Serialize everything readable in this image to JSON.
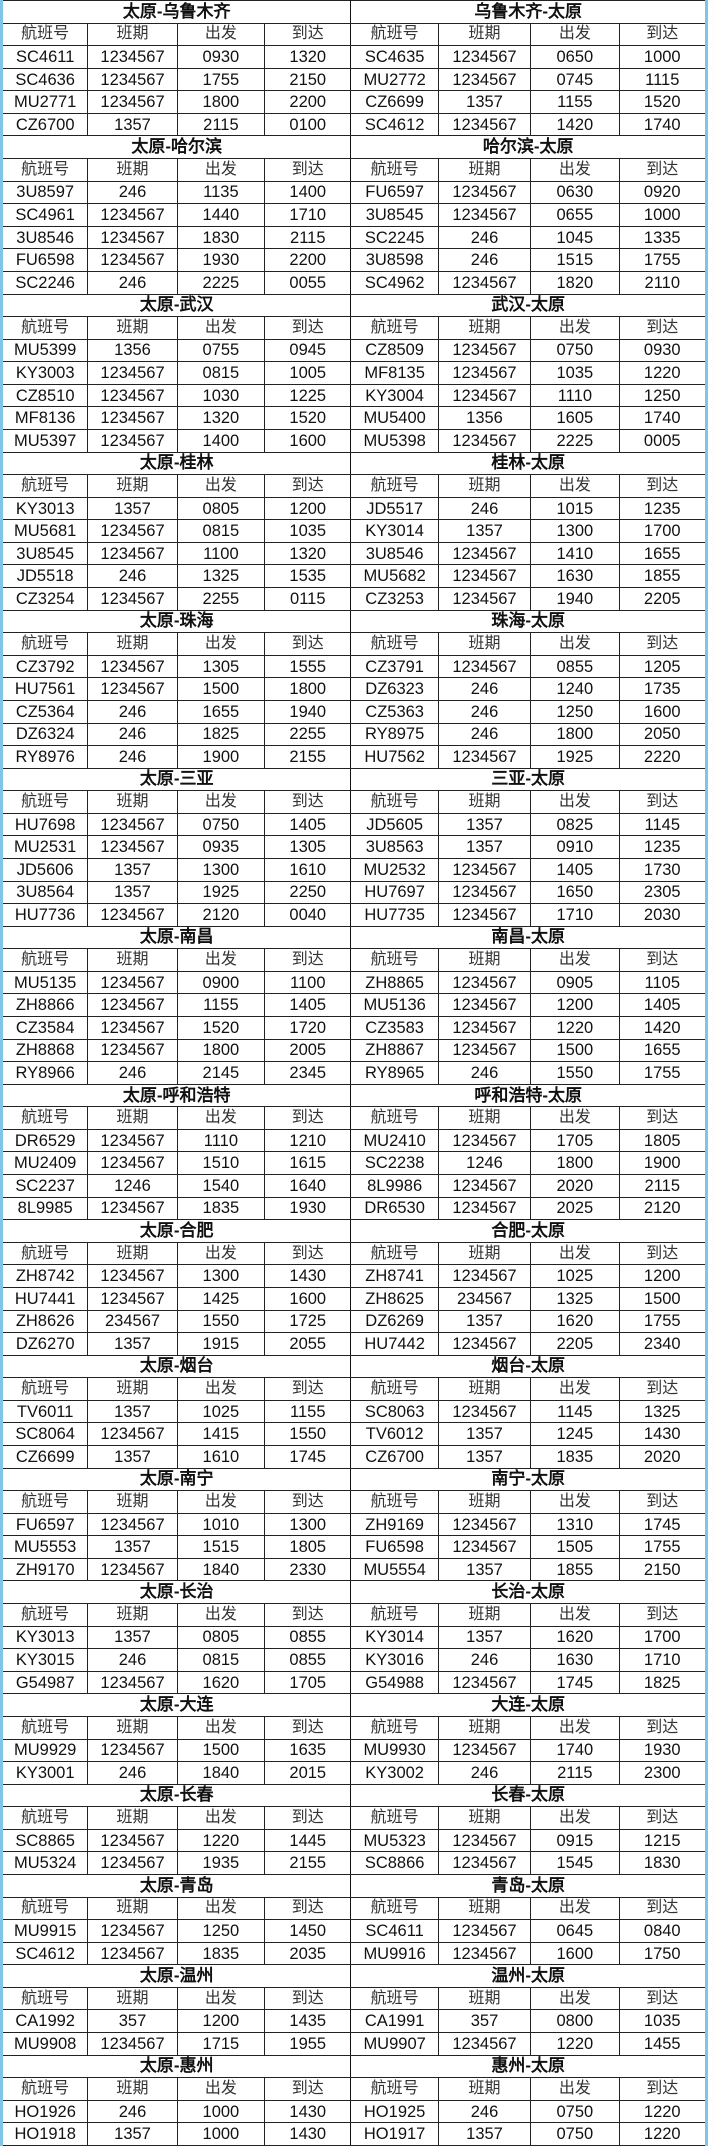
{
  "headers": [
    "航班号",
    "班期",
    "出发",
    "到达"
  ],
  "sections": [
    {
      "left": {
        "title": "太原-乌鲁木齐",
        "rows": [
          [
            "SC4611",
            "1234567",
            "0930",
            "1320"
          ],
          [
            "SC4636",
            "1234567",
            "1755",
            "2150"
          ],
          [
            "MU2771",
            "1234567",
            "1800",
            "2200"
          ],
          [
            "CZ6700",
            "1357",
            "2115",
            "0100"
          ]
        ]
      },
      "right": {
        "title": "乌鲁木齐-太原",
        "rows": [
          [
            "SC4635",
            "1234567",
            "0650",
            "1000"
          ],
          [
            "MU2772",
            "1234567",
            "0745",
            "1115"
          ],
          [
            "CZ6699",
            "1357",
            "1155",
            "1520"
          ],
          [
            "SC4612",
            "1234567",
            "1420",
            "1740"
          ]
        ]
      }
    },
    {
      "left": {
        "title": "太原-哈尔滨",
        "rows": [
          [
            "3U8597",
            "246",
            "1135",
            "1400"
          ],
          [
            "SC4961",
            "1234567",
            "1440",
            "1710"
          ],
          [
            "3U8546",
            "1234567",
            "1830",
            "2115"
          ],
          [
            "FU6598",
            "1234567",
            "1930",
            "2200"
          ],
          [
            "SC2246",
            "246",
            "2225",
            "0055"
          ]
        ]
      },
      "right": {
        "title": "哈尔滨-太原",
        "rows": [
          [
            "FU6597",
            "1234567",
            "0630",
            "0920"
          ],
          [
            "3U8545",
            "1234567",
            "0655",
            "1000"
          ],
          [
            "SC2245",
            "246",
            "1045",
            "1335"
          ],
          [
            "3U8598",
            "246",
            "1515",
            "1755"
          ],
          [
            "SC4962",
            "1234567",
            "1820",
            "2110"
          ]
        ]
      }
    },
    {
      "left": {
        "title": "太原-武汉",
        "rows": [
          [
            "MU5399",
            "1356",
            "0755",
            "0945"
          ],
          [
            "KY3003",
            "1234567",
            "0815",
            "1005"
          ],
          [
            "CZ8510",
            "1234567",
            "1030",
            "1225"
          ],
          [
            "MF8136",
            "1234567",
            "1320",
            "1520"
          ],
          [
            "MU5397",
            "1234567",
            "1400",
            "1600"
          ]
        ]
      },
      "right": {
        "title": "武汉-太原",
        "rows": [
          [
            "CZ8509",
            "1234567",
            "0750",
            "0930"
          ],
          [
            "MF8135",
            "1234567",
            "1035",
            "1220"
          ],
          [
            "KY3004",
            "1234567",
            "1110",
            "1250"
          ],
          [
            "MU5400",
            "1356",
            "1605",
            "1740"
          ],
          [
            "MU5398",
            "1234567",
            "2225",
            "0005"
          ]
        ]
      }
    },
    {
      "left": {
        "title": "太原-桂林",
        "rows": [
          [
            "KY3013",
            "1357",
            "0805",
            "1200"
          ],
          [
            "MU5681",
            "1234567",
            "0815",
            "1035"
          ],
          [
            "3U8545",
            "1234567",
            "1100",
            "1320"
          ],
          [
            "JD5518",
            "246",
            "1325",
            "1535"
          ],
          [
            "CZ3254",
            "1234567",
            "2255",
            "0115"
          ]
        ]
      },
      "right": {
        "title": "桂林-太原",
        "rows": [
          [
            "JD5517",
            "246",
            "1015",
            "1235"
          ],
          [
            "KY3014",
            "1357",
            "1300",
            "1700"
          ],
          [
            "3U8546",
            "1234567",
            "1410",
            "1655"
          ],
          [
            "MU5682",
            "1234567",
            "1630",
            "1855"
          ],
          [
            "CZ3253",
            "1234567",
            "1940",
            "2205"
          ]
        ]
      }
    },
    {
      "left": {
        "title": "太原-珠海",
        "rows": [
          [
            "CZ3792",
            "1234567",
            "1305",
            "1555"
          ],
          [
            "HU7561",
            "1234567",
            "1500",
            "1800"
          ],
          [
            "CZ5364",
            "246",
            "1655",
            "1940"
          ],
          [
            "DZ6324",
            "246",
            "1825",
            "2255"
          ],
          [
            "RY8976",
            "246",
            "1900",
            "2155"
          ]
        ]
      },
      "right": {
        "title": "珠海-太原",
        "rows": [
          [
            "CZ3791",
            "1234567",
            "0855",
            "1205"
          ],
          [
            "DZ6323",
            "246",
            "1240",
            "1735"
          ],
          [
            "CZ5363",
            "246",
            "1250",
            "1600"
          ],
          [
            "RY8975",
            "246",
            "1800",
            "2050"
          ],
          [
            "HU7562",
            "1234567",
            "1925",
            "2220"
          ]
        ]
      }
    },
    {
      "left": {
        "title": "太原-三亚",
        "rows": [
          [
            "HU7698",
            "1234567",
            "0750",
            "1405"
          ],
          [
            "MU2531",
            "1234567",
            "0935",
            "1305"
          ],
          [
            "JD5606",
            "1357",
            "1300",
            "1610"
          ],
          [
            "3U8564",
            "1357",
            "1925",
            "2250"
          ],
          [
            "HU7736",
            "1234567",
            "2120",
            "0040"
          ]
        ]
      },
      "right": {
        "title": "三亚-太原",
        "rows": [
          [
            "JD5605",
            "1357",
            "0825",
            "1145"
          ],
          [
            "3U8563",
            "1357",
            "0910",
            "1235"
          ],
          [
            "MU2532",
            "1234567",
            "1405",
            "1730"
          ],
          [
            "HU7697",
            "1234567",
            "1650",
            "2305"
          ],
          [
            "HU7735",
            "1234567",
            "1710",
            "2030"
          ]
        ]
      }
    },
    {
      "left": {
        "title": "太原-南昌",
        "rows": [
          [
            "MU5135",
            "1234567",
            "0900",
            "1100"
          ],
          [
            "ZH8866",
            "1234567",
            "1155",
            "1405"
          ],
          [
            "CZ3584",
            "1234567",
            "1520",
            "1720"
          ],
          [
            "ZH8868",
            "1234567",
            "1800",
            "2005"
          ],
          [
            "RY8966",
            "246",
            "2145",
            "2345"
          ]
        ]
      },
      "right": {
        "title": "南昌-太原",
        "rows": [
          [
            "ZH8865",
            "1234567",
            "0905",
            "1105"
          ],
          [
            "MU5136",
            "1234567",
            "1200",
            "1405"
          ],
          [
            "CZ3583",
            "1234567",
            "1220",
            "1420"
          ],
          [
            "ZH8867",
            "1234567",
            "1500",
            "1655"
          ],
          [
            "RY8965",
            "246",
            "1550",
            "1755"
          ]
        ]
      }
    },
    {
      "left": {
        "title": "太原-呼和浩特",
        "rows": [
          [
            "DR6529",
            "1234567",
            "1110",
            "1210"
          ],
          [
            "MU2409",
            "1234567",
            "1510",
            "1615"
          ],
          [
            "SC2237",
            "1246",
            "1540",
            "1640"
          ],
          [
            "8L9985",
            "1234567",
            "1835",
            "1930"
          ]
        ]
      },
      "right": {
        "title": "呼和浩特-太原",
        "rows": [
          [
            "MU2410",
            "1234567",
            "1705",
            "1805"
          ],
          [
            "SC2238",
            "1246",
            "1800",
            "1900"
          ],
          [
            "8L9986",
            "1234567",
            "2020",
            "2115"
          ],
          [
            "DR6530",
            "1234567",
            "2025",
            "2120"
          ]
        ]
      }
    },
    {
      "left": {
        "title": "太原-合肥",
        "rows": [
          [
            "ZH8742",
            "1234567",
            "1300",
            "1430"
          ],
          [
            "HU7441",
            "1234567",
            "1425",
            "1600"
          ],
          [
            "ZH8626",
            "234567",
            "1550",
            "1725"
          ],
          [
            "DZ6270",
            "1357",
            "1915",
            "2055"
          ]
        ]
      },
      "right": {
        "title": "合肥-太原",
        "rows": [
          [
            "ZH8741",
            "1234567",
            "1025",
            "1200"
          ],
          [
            "ZH8625",
            "234567",
            "1325",
            "1500"
          ],
          [
            "DZ6269",
            "1357",
            "1620",
            "1755"
          ],
          [
            "HU7442",
            "1234567",
            "2205",
            "2340"
          ]
        ]
      }
    },
    {
      "left": {
        "title": "太原-烟台",
        "rows": [
          [
            "TV6011",
            "1357",
            "1025",
            "1155"
          ],
          [
            "SC8064",
            "1234567",
            "1415",
            "1550"
          ],
          [
            "CZ6699",
            "1357",
            "1610",
            "1745"
          ]
        ]
      },
      "right": {
        "title": "烟台-太原",
        "rows": [
          [
            "SC8063",
            "1234567",
            "1145",
            "1325"
          ],
          [
            "TV6012",
            "1357",
            "1245",
            "1430"
          ],
          [
            "CZ6700",
            "1357",
            "1835",
            "2020"
          ]
        ]
      }
    },
    {
      "left": {
        "title": "太原-南宁",
        "rows": [
          [
            "FU6597",
            "1234567",
            "1010",
            "1300"
          ],
          [
            "MU5553",
            "1357",
            "1515",
            "1805"
          ],
          [
            "ZH9170",
            "1234567",
            "1840",
            "2330"
          ]
        ]
      },
      "right": {
        "title": "南宁-太原",
        "rows": [
          [
            "ZH9169",
            "1234567",
            "1310",
            "1745"
          ],
          [
            "FU6598",
            "1234567",
            "1505",
            "1755"
          ],
          [
            "MU5554",
            "1357",
            "1855",
            "2150"
          ]
        ]
      }
    },
    {
      "left": {
        "title": "太原-长治",
        "rows": [
          [
            "KY3013",
            "1357",
            "0805",
            "0855"
          ],
          [
            "KY3015",
            "246",
            "0815",
            "0855"
          ],
          [
            "G54987",
            "1234567",
            "1620",
            "1705"
          ]
        ]
      },
      "right": {
        "title": "长治-太原",
        "rows": [
          [
            "KY3014",
            "1357",
            "1620",
            "1700"
          ],
          [
            "KY3016",
            "246",
            "1630",
            "1710"
          ],
          [
            "G54988",
            "1234567",
            "1745",
            "1825"
          ]
        ]
      }
    },
    {
      "left": {
        "title": "太原-大连",
        "rows": [
          [
            "MU9929",
            "1234567",
            "1500",
            "1635"
          ],
          [
            "KY3001",
            "246",
            "1840",
            "2015"
          ]
        ]
      },
      "right": {
        "title": "大连-太原",
        "rows": [
          [
            "MU9930",
            "1234567",
            "1740",
            "1930"
          ],
          [
            "KY3002",
            "246",
            "2115",
            "2300"
          ]
        ]
      }
    },
    {
      "left": {
        "title": "太原-长春",
        "rows": [
          [
            "SC8865",
            "1234567",
            "1220",
            "1445"
          ],
          [
            "MU5324",
            "1234567",
            "1935",
            "2155"
          ]
        ]
      },
      "right": {
        "title": "长春-太原",
        "rows": [
          [
            "MU5323",
            "1234567",
            "0915",
            "1215"
          ],
          [
            "SC8866",
            "1234567",
            "1545",
            "1830"
          ]
        ]
      }
    },
    {
      "left": {
        "title": "太原-青岛",
        "rows": [
          [
            "MU9915",
            "1234567",
            "1250",
            "1450"
          ],
          [
            "SC4612",
            "1234567",
            "1835",
            "2035"
          ]
        ]
      },
      "right": {
        "title": "青岛-太原",
        "rows": [
          [
            "SC4611",
            "1234567",
            "0645",
            "0840"
          ],
          [
            "MU9916",
            "1234567",
            "1600",
            "1750"
          ]
        ]
      }
    },
    {
      "left": {
        "title": "太原-温州",
        "rows": [
          [
            "CA1992",
            "357",
            "1200",
            "1435"
          ],
          [
            "MU9908",
            "1234567",
            "1715",
            "1955"
          ]
        ]
      },
      "right": {
        "title": "温州-太原",
        "rows": [
          [
            "CA1991",
            "357",
            "0800",
            "1035"
          ],
          [
            "MU9907",
            "1234567",
            "1220",
            "1455"
          ]
        ]
      }
    },
    {
      "left": {
        "title": "太原-惠州",
        "rows": [
          [
            "HO1926",
            "246",
            "1000",
            "1430"
          ],
          [
            "HO1918",
            "1357",
            "1000",
            "1430"
          ]
        ]
      },
      "right": {
        "title": "惠州-太原",
        "rows": [
          [
            "HO1925",
            "246",
            "0750",
            "1220"
          ],
          [
            "HO1917",
            "1357",
            "0750",
            "1220"
          ]
        ]
      }
    }
  ]
}
